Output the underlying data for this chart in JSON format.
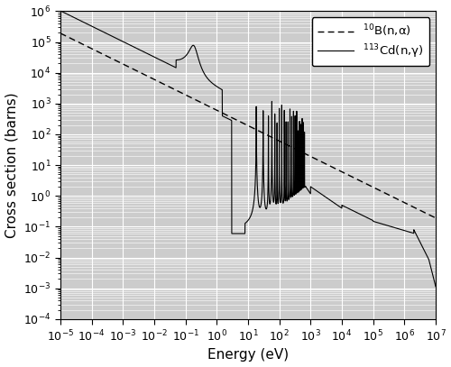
{
  "title": "",
  "xlabel": "Energy (eV)",
  "ylabel": "Cross section (barns)",
  "xlim_log": [
    -5,
    7
  ],
  "ylim_log": [
    -4,
    6
  ],
  "background_color": "#cccccc",
  "grid_color": "#ffffff",
  "line_color": "#000000",
  "legend_entries": [
    "$^{10}$B(n,α)",
    "$^{113}$Cd(n,γ)"
  ],
  "legend_styles": [
    "dashed",
    "solid"
  ]
}
